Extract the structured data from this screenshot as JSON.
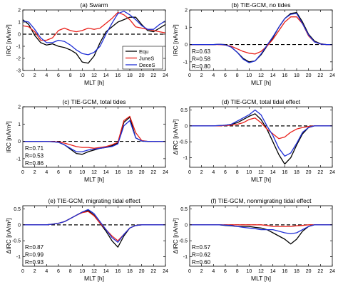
{
  "colors": {
    "equ": "#000000",
    "junes": "#e8201a",
    "deces": "#1f2fd6",
    "zero_line": "#000000"
  },
  "x_ticks": [
    "0",
    "2",
    "4",
    "6",
    "8",
    "10",
    "12",
    "14",
    "16",
    "18",
    "20",
    "22",
    "24"
  ],
  "chart_data": [
    {
      "type": "line",
      "title": "(a) Swarm",
      "xlabel": "MLT [h]",
      "ylabel": "IRC [nA/m²]",
      "xlim": [
        0,
        24
      ],
      "ylim": [
        -3,
        2
      ],
      "yticks": [
        "-3",
        "-2",
        "-1",
        "0",
        "1",
        "2"
      ],
      "legend": {
        "placement": "bottom-right",
        "entries": [
          "Equ",
          "JuneS",
          "DeceS"
        ]
      },
      "r_labels": [],
      "x": [
        0,
        1,
        2,
        3,
        4,
        5,
        6,
        7,
        8,
        9,
        10,
        11,
        12,
        13,
        14,
        15,
        16,
        17,
        18,
        19,
        20,
        21,
        22,
        23,
        24
      ],
      "series": [
        {
          "name": "Equ",
          "color_key": "equ",
          "values": [
            1.2,
            0.8,
            -0.1,
            -0.7,
            -0.9,
            -0.8,
            -1.0,
            -1.1,
            -1.3,
            -1.6,
            -2.3,
            -2.4,
            -1.8,
            -0.7,
            0.2,
            0.6,
            1.0,
            1.2,
            1.4,
            1.4,
            0.8,
            0.3,
            0.2,
            0.5,
            0.8
          ]
        },
        {
          "name": "JuneS",
          "color_key": "junes",
          "values": [
            0.7,
            0.6,
            0.2,
            -0.5,
            -0.5,
            -0.3,
            0.3,
            0.5,
            0.3,
            0.2,
            0.3,
            0.5,
            0.4,
            0.5,
            0.9,
            1.3,
            1.8,
            1.6,
            1.2,
            0.6,
            0.5,
            0.4,
            0.3,
            0.2,
            0.1
          ]
        },
        {
          "name": "DeceS",
          "color_key": "deces",
          "values": [
            1.1,
            1.0,
            0.4,
            -0.3,
            -0.7,
            -0.7,
            -0.5,
            -0.6,
            -0.9,
            -1.3,
            -1.6,
            -1.7,
            -1.5,
            -1.0,
            0.0,
            0.9,
            1.7,
            1.9,
            1.6,
            1.2,
            0.7,
            0.4,
            0.4,
            0.8,
            1.1
          ]
        }
      ]
    },
    {
      "type": "line",
      "title": "(b) TIE-GCM, no tides",
      "xlabel": "MLT [h]",
      "ylabel": "IRC [nA/m²]",
      "xlim": [
        0,
        24
      ],
      "ylim": [
        -1.5,
        2
      ],
      "yticks": [
        "-1",
        "0",
        "1",
        "2"
      ],
      "r_labels": [
        {
          "text": "R=0.63",
          "color_key": "equ"
        },
        {
          "text": "R=0.58",
          "color_key": "junes"
        },
        {
          "text": "R=0.80",
          "color_key": "deces"
        }
      ],
      "x": [
        0,
        1,
        2,
        3,
        4,
        5,
        6,
        7,
        8,
        9,
        10,
        11,
        12,
        13,
        14,
        15,
        16,
        17,
        18,
        19,
        20,
        21,
        22,
        23,
        24
      ],
      "series": [
        {
          "name": "Equ",
          "color_key": "equ",
          "values": [
            0,
            0,
            0,
            0,
            0,
            0.02,
            0.0,
            -0.15,
            -0.45,
            -0.8,
            -1.0,
            -0.95,
            -0.6,
            -0.1,
            0.4,
            1.0,
            1.5,
            1.8,
            1.85,
            1.3,
            0.6,
            0.2,
            0.05,
            0,
            0
          ]
        },
        {
          "name": "JuneS",
          "color_key": "junes",
          "values": [
            0,
            0,
            0,
            0,
            0,
            0,
            -0.03,
            -0.1,
            -0.25,
            -0.4,
            -0.5,
            -0.55,
            -0.4,
            -0.1,
            0.3,
            0.8,
            1.3,
            1.6,
            1.6,
            1.2,
            0.5,
            0.15,
            0.03,
            0,
            0
          ]
        },
        {
          "name": "DeceS",
          "color_key": "deces",
          "values": [
            0,
            0,
            0,
            0,
            0,
            0.02,
            -0.02,
            -0.15,
            -0.45,
            -0.85,
            -1.05,
            -0.95,
            -0.55,
            -0.05,
            0.45,
            1.0,
            1.5,
            1.75,
            1.8,
            1.2,
            0.55,
            0.15,
            0.03,
            0,
            0
          ]
        }
      ]
    },
    {
      "type": "line",
      "title": "(c) TIE-GCM, total tides",
      "xlabel": "MLT [h]",
      "ylabel": "IRC [nA/m²]",
      "xlim": [
        0,
        24
      ],
      "ylim": [
        -1.5,
        2
      ],
      "yticks": [
        "-1",
        "0",
        "1",
        "2"
      ],
      "r_labels": [
        {
          "text": "R=0.71",
          "color_key": "equ"
        },
        {
          "text": "R=0.53",
          "color_key": "junes"
        },
        {
          "text": "R=0.86",
          "color_key": "deces"
        }
      ],
      "x": [
        0,
        1,
        2,
        3,
        4,
        5,
        6,
        7,
        8,
        9,
        10,
        11,
        12,
        13,
        14,
        15,
        16,
        17,
        18,
        19,
        20,
        21,
        22,
        23,
        24
      ],
      "series": [
        {
          "name": "Equ",
          "color_key": "equ",
          "values": [
            0,
            0,
            0,
            0,
            0,
            -0.02,
            -0.05,
            -0.2,
            -0.45,
            -0.7,
            -0.75,
            -0.6,
            -0.5,
            -0.4,
            -0.35,
            -0.25,
            -0.1,
            1.1,
            1.4,
            0.2,
            0.02,
            0,
            0,
            0,
            0
          ]
        },
        {
          "name": "JuneS",
          "color_key": "junes",
          "values": [
            0,
            0,
            0,
            0,
            0,
            -0.01,
            -0.03,
            -0.1,
            -0.2,
            -0.3,
            -0.35,
            -0.35,
            -0.4,
            -0.35,
            -0.3,
            -0.2,
            -0.05,
            1.2,
            1.45,
            0.5,
            0.05,
            0,
            0,
            0,
            0
          ]
        },
        {
          "name": "DeceS",
          "color_key": "deces",
          "values": [
            0,
            0,
            0,
            0,
            0,
            -0.02,
            -0.05,
            -0.2,
            -0.4,
            -0.6,
            -0.6,
            -0.5,
            -0.45,
            -0.4,
            -0.35,
            -0.3,
            -0.15,
            0.9,
            1.2,
            0.2,
            0.02,
            0,
            0,
            0,
            0
          ]
        }
      ]
    },
    {
      "type": "line",
      "title": "(d) TIE-GCM, total tidal effect",
      "xlabel": "MLT [h]",
      "ylabel": "ΔIRC [nA/m²]",
      "xlim": [
        0,
        24
      ],
      "ylim": [
        -1.3,
        0.6
      ],
      "yticks": [
        "-1",
        "-0.5",
        "0",
        "0.5"
      ],
      "r_labels": [],
      "x": [
        0,
        1,
        2,
        3,
        4,
        5,
        6,
        7,
        8,
        9,
        10,
        11,
        12,
        13,
        14,
        15,
        16,
        17,
        18,
        19,
        20,
        21,
        22,
        23,
        24
      ],
      "series": [
        {
          "name": "Equ",
          "color_key": "equ",
          "values": [
            0,
            0,
            0,
            0,
            0,
            0.01,
            0.02,
            0.05,
            0.1,
            0.2,
            0.3,
            0.38,
            0.2,
            -0.1,
            -0.5,
            -0.9,
            -1.2,
            -1.0,
            -0.6,
            -0.25,
            -0.05,
            0,
            0,
            0,
            0
          ]
        },
        {
          "name": "JuneS",
          "color_key": "junes",
          "values": [
            0,
            0,
            0,
            0,
            0,
            0,
            0.01,
            0.02,
            0.05,
            0.1,
            0.2,
            0.25,
            0.1,
            -0.1,
            -0.25,
            -0.4,
            -0.35,
            -0.2,
            -0.1,
            -0.05,
            -0.02,
            0,
            0,
            0,
            0
          ]
        },
        {
          "name": "DeceS",
          "color_key": "deces",
          "values": [
            0,
            0,
            0,
            0,
            0,
            0.01,
            0.02,
            0.05,
            0.15,
            0.25,
            0.35,
            0.5,
            0.35,
            0.0,
            -0.3,
            -0.7,
            -0.95,
            -0.85,
            -0.55,
            -0.2,
            -0.05,
            0,
            0,
            0,
            0
          ]
        }
      ]
    },
    {
      "type": "line",
      "title": "(e) TIE-GCM, migrating tidal effect",
      "xlabel": "MLT [h]",
      "ylabel": "ΔIRC [nA/m²]",
      "xlim": [
        0,
        24
      ],
      "ylim": [
        -1.3,
        0.6
      ],
      "yticks": [
        "-1",
        "-0.5",
        "0",
        "0.5"
      ],
      "r_labels": [
        {
          "text": "R=0.87",
          "color_key": "equ"
        },
        {
          "text": "R=0.99",
          "color_key": "junes"
        },
        {
          "text": "R=0.93",
          "color_key": "deces"
        }
      ],
      "x": [
        0,
        1,
        2,
        3,
        4,
        5,
        6,
        7,
        8,
        9,
        10,
        11,
        12,
        13,
        14,
        15,
        16,
        17,
        18,
        19,
        20,
        21,
        22,
        23,
        24
      ],
      "series": [
        {
          "name": "Equ",
          "color_key": "equ",
          "values": [
            0,
            0,
            0,
            0,
            0,
            0.02,
            0.05,
            0.1,
            0.2,
            0.3,
            0.4,
            0.45,
            0.3,
            0.05,
            -0.2,
            -0.5,
            -0.7,
            -0.35,
            -0.1,
            -0.02,
            0,
            0,
            0,
            0,
            0
          ]
        },
        {
          "name": "JuneS",
          "color_key": "junes",
          "values": [
            0,
            0,
            0,
            0,
            0,
            0.02,
            0.05,
            0.1,
            0.2,
            0.3,
            0.38,
            0.42,
            0.28,
            0.05,
            -0.15,
            -0.35,
            -0.5,
            -0.3,
            -0.1,
            -0.02,
            0,
            0,
            0,
            0,
            0
          ]
        },
        {
          "name": "DeceS",
          "color_key": "deces",
          "values": [
            0,
            0,
            0,
            0,
            0,
            0.02,
            0.05,
            0.1,
            0.2,
            0.3,
            0.4,
            0.48,
            0.35,
            0.1,
            -0.15,
            -0.4,
            -0.55,
            -0.3,
            -0.1,
            -0.02,
            0,
            0,
            0,
            0,
            0
          ]
        }
      ]
    },
    {
      "type": "line",
      "title": "(f) TIE-GCM, nonmigrating tidal effect",
      "xlabel": "MLT [h]",
      "ylabel": "ΔIRC [nA/m²]",
      "xlim": [
        0,
        24
      ],
      "ylim": [
        -1.3,
        0.6
      ],
      "yticks": [
        "-1",
        "-0.5",
        "0",
        "0.5"
      ],
      "r_labels": [
        {
          "text": "R=0.57",
          "color_key": "equ"
        },
        {
          "text": "R=0.62",
          "color_key": "junes"
        },
        {
          "text": "R=0.60",
          "color_key": "deces"
        }
      ],
      "x": [
        0,
        1,
        2,
        3,
        4,
        5,
        6,
        7,
        8,
        9,
        10,
        11,
        12,
        13,
        14,
        15,
        16,
        17,
        18,
        19,
        20,
        21,
        22,
        23,
        24
      ],
      "series": [
        {
          "name": "Equ",
          "color_key": "equ",
          "values": [
            0,
            0,
            0,
            0,
            0,
            0,
            -0.02,
            -0.03,
            -0.05,
            -0.05,
            -0.05,
            -0.08,
            -0.1,
            -0.15,
            -0.25,
            -0.35,
            -0.45,
            -0.6,
            -0.45,
            -0.2,
            -0.05,
            0,
            0,
            0,
            0
          ]
        },
        {
          "name": "JuneS",
          "color_key": "junes",
          "values": [
            0,
            0,
            0,
            0,
            0,
            0,
            0,
            0,
            0,
            0,
            0,
            0,
            0,
            -0.02,
            -0.05,
            -0.05,
            -0.05,
            -0.05,
            -0.03,
            -0.02,
            0,
            0,
            0,
            0,
            0
          ]
        },
        {
          "name": "DeceS",
          "color_key": "deces",
          "values": [
            0,
            0,
            0,
            0,
            0,
            0,
            -0.01,
            -0.02,
            -0.05,
            -0.08,
            -0.1,
            -0.12,
            -0.15,
            -0.15,
            -0.15,
            -0.2,
            -0.25,
            -0.28,
            -0.25,
            -0.15,
            -0.05,
            0,
            0,
            0,
            0
          ]
        }
      ]
    }
  ]
}
